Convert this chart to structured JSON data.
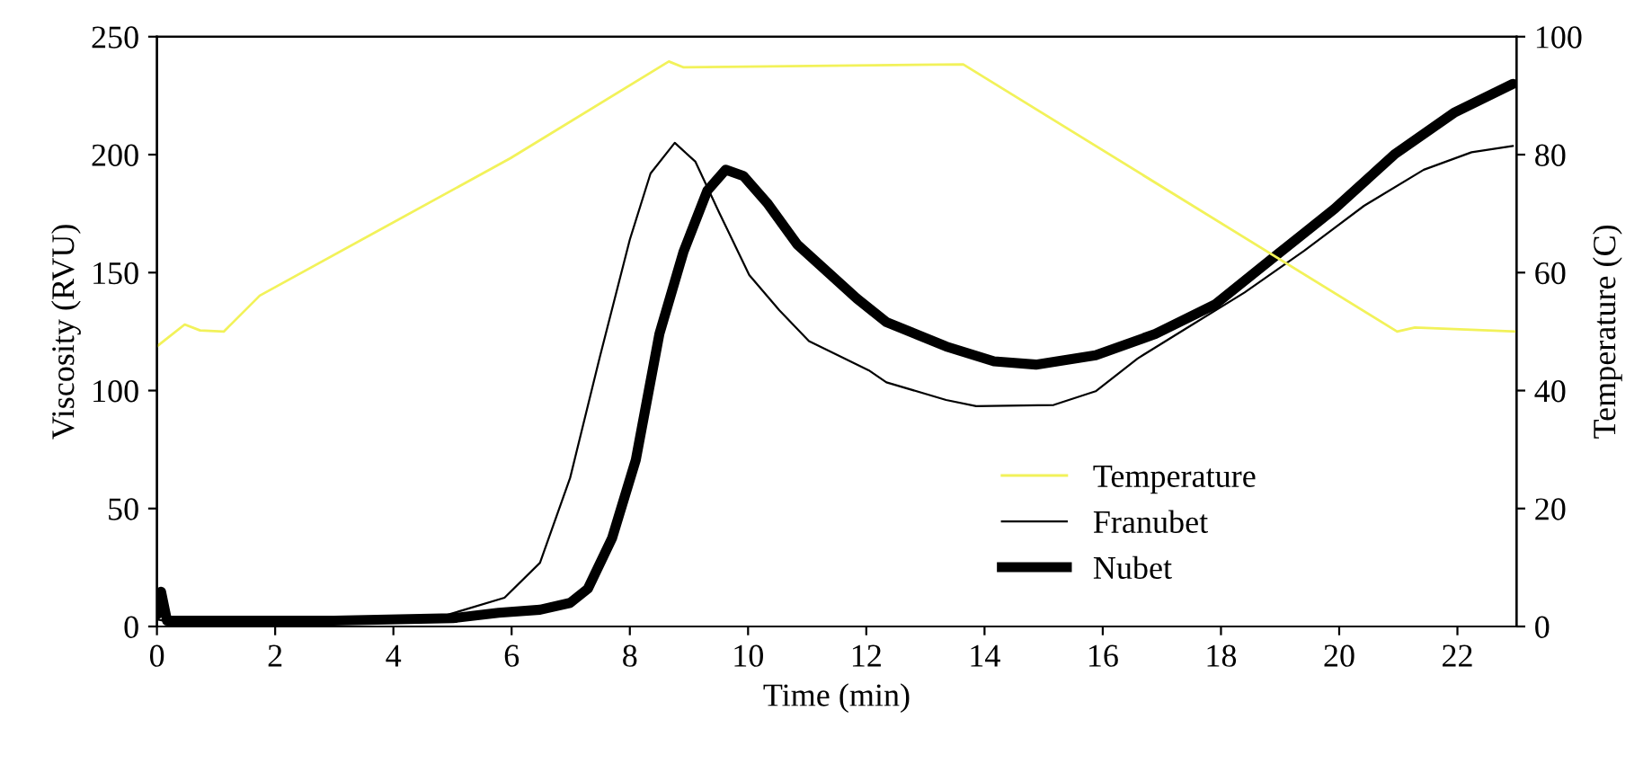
{
  "chart_data": {
    "type": "line",
    "xlabel": "Time (min)",
    "ylabel": "Viscosity (RVU)",
    "y2label": "Temperature (C)",
    "xlim": [
      0,
      23
    ],
    "xticks": [
      0,
      2,
      4,
      6,
      8,
      10,
      12,
      14,
      16,
      18,
      20,
      22
    ],
    "ylim": [
      0,
      250
    ],
    "yticks": [
      0,
      50,
      100,
      150,
      200,
      250
    ],
    "y2lim": [
      0,
      100
    ],
    "y2ticks": [
      0,
      20,
      40,
      60,
      80,
      100
    ],
    "grid": false,
    "legend": "bottom right",
    "marker": "none",
    "line_style": "solid",
    "series": [
      {
        "name": "Temperature",
        "color": "#f2f25a",
        "axis": "y2",
        "x": [
          0,
          0.47,
          0.73,
          1.13,
          1.74,
          5.98,
          8.66,
          8.91,
          13.64,
          20.98,
          21.28,
          23
        ],
        "values": [
          47.5,
          51.2,
          50.2,
          50,
          56.1,
          79.4,
          95.8,
          94.8,
          95.3,
          50,
          50.7,
          50
        ]
      },
      {
        "name": "Franubet",
        "color": "#000000",
        "axis": "y",
        "x": [
          0,
          0.2,
          2,
          4,
          4.87,
          5.88,
          6.48,
          6.99,
          7.49,
          8.0,
          8.35,
          8.76,
          9.11,
          9.52,
          10.02,
          10.53,
          11.03,
          12.04,
          12.34,
          13.35,
          13.86,
          15.17,
          15.88,
          16.59,
          17.39,
          18.4,
          19.41,
          20.42,
          21.43,
          22.24,
          22.94
        ],
        "values": [
          3,
          2,
          2,
          3,
          4.6,
          12.2,
          27,
          63,
          114,
          164,
          192,
          205,
          197,
          175,
          149,
          134,
          121,
          108.6,
          103.5,
          96,
          93.4,
          93.9,
          99.7,
          113.6,
          126,
          141.6,
          159.3,
          178.3,
          193.6,
          201,
          203.7
        ]
      },
      {
        "name": "Nubet",
        "color": "#000000",
        "axis": "y",
        "x": [
          0,
          0.07,
          0.17,
          3,
          5,
          5.78,
          6.48,
          6.99,
          7.29,
          7.7,
          8.1,
          8.5,
          8.91,
          9.31,
          9.62,
          9.92,
          10.32,
          10.83,
          11.84,
          12.34,
          13.35,
          14.16,
          14.87,
          15.88,
          16.89,
          17.9,
          18.91,
          19.92,
          20.93,
          21.94,
          22.94
        ],
        "values": [
          5,
          14.7,
          2.5,
          2.5,
          3.5,
          5.8,
          7.1,
          10,
          16,
          37.5,
          70.5,
          124,
          159,
          184.7,
          193.6,
          191,
          179.6,
          162,
          139,
          129,
          118.7,
          112.4,
          111,
          115,
          124,
          136.5,
          156.8,
          177,
          200,
          217.7,
          230
        ]
      }
    ]
  }
}
